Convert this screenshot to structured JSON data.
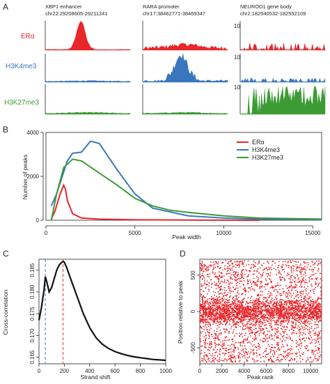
{
  "panel_a": {
    "letter": "A",
    "regions": [
      {
        "name": "XBP1 enhancer",
        "coords": "chr22:29208605-29211241"
      },
      {
        "name": "RARA promoter",
        "coords": "chr17:38462771-38469347"
      },
      {
        "name": "NEUROD1 gene body",
        "coords": "chr2:182540532-182552109"
      }
    ],
    "tracks": [
      {
        "label": "ERα",
        "color": "#e8262b"
      },
      {
        "label": "H3K4me3",
        "color": "#3a76bd"
      },
      {
        "label": "H3K27me3",
        "color": "#3d9b35"
      }
    ],
    "scale_label": "10"
  },
  "chart_data": [
    {
      "panel": "B",
      "type": "line",
      "xlabel": "Peak width",
      "ylabel": "Number of peaks",
      "xlim": [
        0,
        15500
      ],
      "ylim": [
        0,
        4000
      ],
      "xticks": [
        "0",
        "5000",
        "10000",
        "15000"
      ],
      "yticks": [
        "0",
        "2000",
        "4000"
      ],
      "legend_position": "top-right",
      "series": [
        {
          "name": "ERα",
          "color": "#e8262b",
          "x": [
            300,
            500,
            800,
            1000,
            1100,
            1200,
            1500,
            2000,
            3000,
            5000,
            8000,
            12000
          ],
          "y": [
            50,
            400,
            1200,
            1600,
            1400,
            900,
            300,
            100,
            50,
            20,
            10,
            0
          ]
        },
        {
          "name": "H3K4me3",
          "color": "#3a76bd",
          "x": [
            300,
            600,
            1000,
            1200,
            1500,
            2000,
            2500,
            3000,
            4000,
            5000,
            6000,
            8000,
            10000,
            12000,
            15500
          ],
          "y": [
            650,
            1200,
            2200,
            2700,
            3050,
            3100,
            3600,
            3500,
            2300,
            1200,
            550,
            200,
            100,
            50,
            20
          ]
        },
        {
          "name": "H3K27me3",
          "color": "#3d9b35",
          "x": [
            300,
            600,
            1000,
            1500,
            2000,
            3000,
            4000,
            5000,
            6000,
            7000,
            8000,
            10000,
            12000,
            15500
          ],
          "y": [
            0,
            1200,
            2400,
            2780,
            2700,
            2150,
            1600,
            1000,
            650,
            450,
            360,
            200,
            100,
            50
          ]
        }
      ]
    },
    {
      "panel": "C",
      "type": "line",
      "xlabel": "Strand shift",
      "ylabel": "Cross-correlation",
      "xlim": [
        0,
        1000
      ],
      "ylim": [
        0.1635,
        0.1875
      ],
      "xticks": [
        "0",
        "200",
        "400",
        "600",
        "800",
        "1000"
      ],
      "yticks": [
        "0.165",
        "0.170",
        "0.175",
        "0.180",
        "0.185"
      ],
      "vlines": [
        {
          "x": 50,
          "color": "#3a76bd"
        },
        {
          "x": 190,
          "color": "#e8262b"
        }
      ],
      "series": [
        {
          "color": "#111111",
          "x": [
            0,
            20,
            40,
            50,
            60,
            80,
            100,
            120,
            140,
            160,
            180,
            190,
            200,
            220,
            250,
            300,
            350,
            400,
            450,
            500,
            550,
            600,
            650,
            700,
            750,
            800,
            850,
            900,
            950,
            1000
          ],
          "y": [
            0.1735,
            0.1765,
            0.1805,
            0.1835,
            0.1825,
            0.18,
            0.181,
            0.183,
            0.185,
            0.1862,
            0.1868,
            0.187,
            0.1868,
            0.1855,
            0.183,
            0.179,
            0.175,
            0.1718,
            0.1695,
            0.168,
            0.167,
            0.1663,
            0.1658,
            0.1654,
            0.1651,
            0.1649,
            0.1647,
            0.1645,
            0.1644,
            0.1643
          ]
        }
      ]
    },
    {
      "panel": "D",
      "type": "scatter",
      "xlabel": "Peak rank",
      "ylabel": "Position relative to peak",
      "xlim": [
        0,
        11000
      ],
      "ylim": [
        -720,
        720
      ],
      "xticks": [
        "0",
        "2000",
        "4000",
        "6000",
        "8000",
        "10000"
      ],
      "yticks": [
        "-500",
        "0",
        "500"
      ],
      "point_color": "#e8262b",
      "n_points": 5000
    }
  ],
  "letters": {
    "b": "B",
    "c": "C",
    "d": "D"
  }
}
